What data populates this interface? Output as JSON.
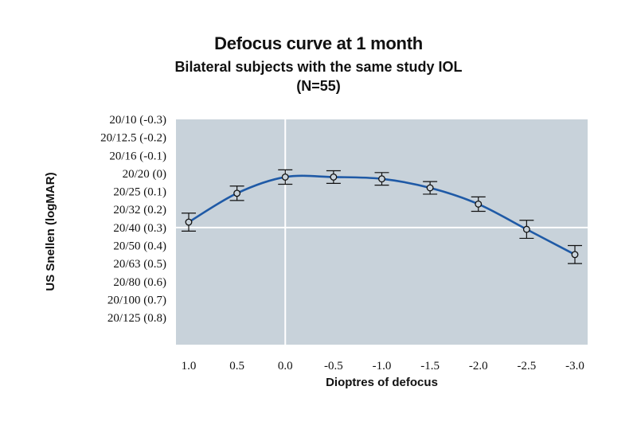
{
  "chart_data": {
    "type": "line",
    "title": "Defocus curve at 1 month",
    "subtitle_line1": "Bilateral subjects with the same study IOL",
    "subtitle_line2": "(N=55)",
    "xlabel": "Dioptres of defocus",
    "ylabel": "US Snellen (logMAR)",
    "x_ticks": [
      "1.0",
      "0.5",
      "0.0",
      "-0.5",
      "-1.0",
      "-1.5",
      "-2.0",
      "-2.5",
      "-3.0"
    ],
    "x": [
      1.0,
      0.5,
      0.0,
      -0.5,
      -1.0,
      -1.5,
      -2.0,
      -2.5,
      -3.0
    ],
    "y_ticks": [
      {
        "label": "20/10 (-0.3)",
        "value": -0.3
      },
      {
        "label": "20/12.5 (-0.2)",
        "value": -0.2
      },
      {
        "label": "20/16 (-0.1)",
        "value": -0.1
      },
      {
        "label": "20/20 (0)",
        "value": 0.0
      },
      {
        "label": "20/25 (0.1)",
        "value": 0.1
      },
      {
        "label": "20/32 (0.2)",
        "value": 0.2
      },
      {
        "label": "20/40 (0.3)",
        "value": 0.3
      },
      {
        "label": "20/50 (0.4)",
        "value": 0.4
      },
      {
        "label": "20/63 (0.5)",
        "value": 0.5
      },
      {
        "label": "20/80 (0.6)",
        "value": 0.6
      },
      {
        "label": "20/100 (0.7)",
        "value": 0.7
      },
      {
        "label": "20/125 (0.8)",
        "value": 0.8
      }
    ],
    "series": [
      {
        "y": [
          0.27,
          0.11,
          0.02,
          0.02,
          0.03,
          0.08,
          0.17,
          0.31,
          0.45
        ],
        "error": [
          0.05,
          0.04,
          0.04,
          0.035,
          0.035,
          0.035,
          0.04,
          0.05,
          0.05
        ],
        "color": "#1f5aa6"
      }
    ],
    "xlim": [
      1.0,
      -3.0
    ],
    "ylim": [
      -0.3,
      0.95
    ],
    "y_inverted": true,
    "reference_lines": {
      "x": 0.0,
      "y": 0.3
    },
    "plot_background": "#c8d2da",
    "grid": false
  }
}
